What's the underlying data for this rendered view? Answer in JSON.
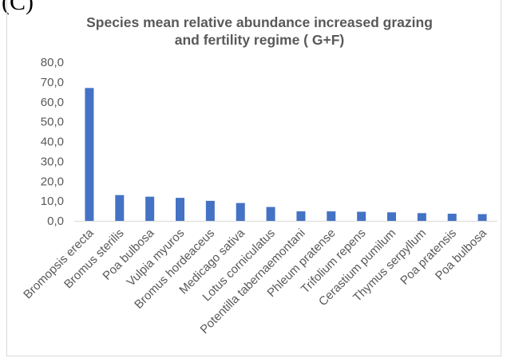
{
  "panel_label": "(C)",
  "chart_data": {
    "type": "bar",
    "title": "Species mean relative abundance  increased grazing and fertility regime ( G+F)",
    "title_lines": [
      "Species mean relative abundance  increased grazing",
      "and fertility regime ( G+F)"
    ],
    "xlabel": "",
    "ylabel": "",
    "ylim": [
      0,
      80
    ],
    "yticks": [
      "0,0",
      "10,0",
      "20,0",
      "30,0",
      "40,0",
      "50,0",
      "60,0",
      "70,0",
      "80,0"
    ],
    "grid": false,
    "legend": "none",
    "bar_color": "#4472c4",
    "categories": [
      "Bromopsis erecta",
      "Bromus sterilis",
      "Poa bulbosa",
      "Vulpia myuros",
      "Bromus hordeaceus",
      "Medicago sativa",
      "Lotus corniculatus",
      "Potentilla tabernaemontani",
      "Phleum pratense",
      "Trifolium repens",
      "Cerastium pumilum",
      "Thymus serpyllum",
      "Poa pratensis",
      "Poa bulbosa"
    ],
    "values": [
      67.0,
      13.0,
      12.2,
      11.6,
      10.1,
      9.0,
      7.0,
      4.8,
      4.8,
      4.6,
      4.3,
      3.9,
      3.6,
      3.4
    ]
  }
}
